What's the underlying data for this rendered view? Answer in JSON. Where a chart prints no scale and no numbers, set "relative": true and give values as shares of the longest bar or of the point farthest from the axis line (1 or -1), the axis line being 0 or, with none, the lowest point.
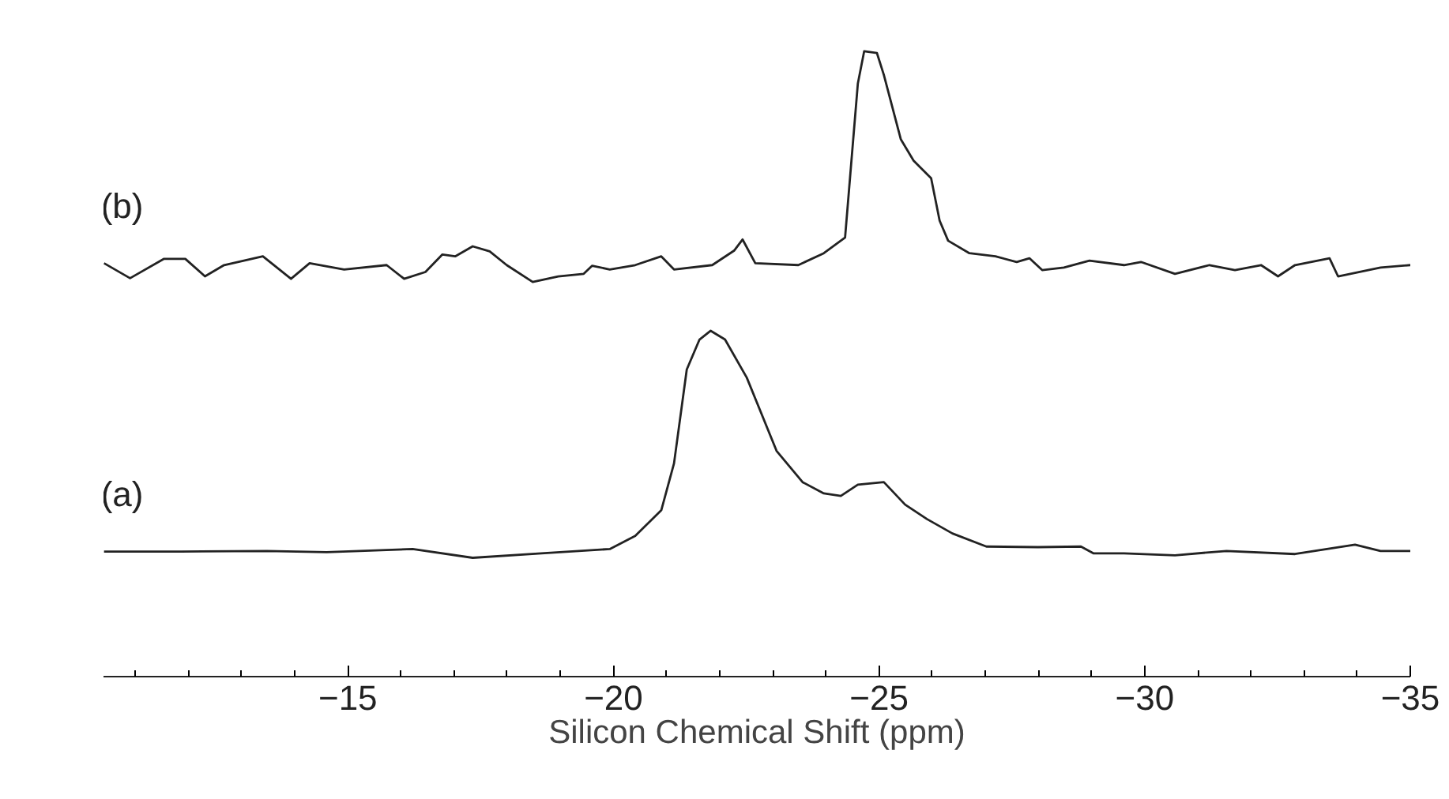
{
  "chart_data": {
    "type": "line",
    "relative": true,
    "xlabel": "Silicon Chemical Shift (ppm)",
    "tick_labels": "x",
    "grid": false,
    "marker": "none",
    "line_style": "solid",
    "xlim": [
      -10.4,
      -35
    ],
    "xticks": [
      {
        "value": -11,
        "label": null
      },
      {
        "value": -12,
        "label": null
      },
      {
        "value": -13,
        "label": null
      },
      {
        "value": -14,
        "label": null
      },
      -15,
      {
        "value": -16,
        "label": null
      },
      {
        "value": -17,
        "label": null
      },
      {
        "value": -18,
        "label": null
      },
      {
        "value": -19,
        "label": null
      },
      -20,
      {
        "value": -21,
        "label": null
      },
      {
        "value": -22,
        "label": null
      },
      {
        "value": -23,
        "label": null
      },
      {
        "value": -24,
        "label": null
      },
      -25,
      {
        "value": -26,
        "label": null
      },
      {
        "value": -27,
        "label": null
      },
      {
        "value": -28,
        "label": null
      },
      {
        "value": -29,
        "label": null
      },
      -30,
      {
        "value": -31,
        "label": null
      },
      {
        "value": -32,
        "label": null
      },
      {
        "value": -33,
        "label": null
      },
      {
        "value": -34,
        "label": null
      },
      -35
    ],
    "series": [
      {
        "name": "(b)",
        "color": "#222222",
        "x": [
          -10.41,
          -10.9,
          -11.54,
          -11.94,
          -12.31,
          -12.67,
          -13.4,
          -13.93,
          -14.28,
          -14.93,
          -15.73,
          -16.06,
          -16.46,
          -16.78,
          -17.02,
          -17.35,
          -17.67,
          -17.99,
          -18.48,
          -18.96,
          -19.44,
          -19.6,
          -19.93,
          -20.41,
          -20.9,
          -21.14,
          -21.86,
          -22.27,
          -22.43,
          -22.67,
          -23.48,
          -23.96,
          -24.36,
          -24.44,
          -24.6,
          -24.72,
          -24.96,
          -25.09,
          -25.41,
          -25.65,
          -25.98,
          -26.14,
          -26.3,
          -26.7,
          -27.19,
          -27.59,
          -27.83,
          -28.07,
          -28.48,
          -28.96,
          -29.61,
          -29.93,
          -30.57,
          -31.22,
          -31.7,
          -32.19,
          -32.51,
          -32.83,
          -33.48,
          -33.64,
          -34.44,
          -35.0
        ],
        "values": [
          0.661,
          0.637,
          0.668,
          0.668,
          0.64,
          0.658,
          0.672,
          0.636,
          0.661,
          0.651,
          0.658,
          0.636,
          0.647,
          0.675,
          0.672,
          0.688,
          0.68,
          0.658,
          0.631,
          0.64,
          0.644,
          0.657,
          0.651,
          0.658,
          0.672,
          0.651,
          0.658,
          0.681,
          0.699,
          0.661,
          0.658,
          0.677,
          0.702,
          0.784,
          0.948,
          1.0,
          0.997,
          0.962,
          0.859,
          0.825,
          0.797,
          0.729,
          0.697,
          0.677,
          0.672,
          0.663,
          0.669,
          0.65,
          0.654,
          0.665,
          0.658,
          0.663,
          0.644,
          0.658,
          0.65,
          0.658,
          0.64,
          0.658,
          0.669,
          0.64,
          0.654,
          0.658
        ]
      },
      {
        "name": "(a)",
        "color": "#222222",
        "x": [
          -10.41,
          -11.86,
          -13.48,
          -14.6,
          -16.22,
          -17.35,
          -18.64,
          -19.93,
          -20.41,
          -20.9,
          -21.14,
          -21.38,
          -21.62,
          -21.83,
          -22.1,
          -22.51,
          -23.07,
          -23.56,
          -23.96,
          -24.28,
          -24.6,
          -25.09,
          -25.49,
          -25.9,
          -26.38,
          -27.02,
          -27.99,
          -28.8,
          -29.04,
          -29.61,
          -30.57,
          -31.54,
          -32.83,
          -33.96,
          -34.44,
          -35.0
        ],
        "values": [
          0.2,
          0.2,
          0.201,
          0.199,
          0.204,
          0.19,
          0.197,
          0.204,
          0.225,
          0.266,
          0.341,
          0.491,
          0.539,
          0.553,
          0.539,
          0.478,
          0.361,
          0.311,
          0.293,
          0.289,
          0.307,
          0.311,
          0.275,
          0.252,
          0.229,
          0.208,
          0.207,
          0.208,
          0.197,
          0.197,
          0.194,
          0.201,
          0.196,
          0.211,
          0.201,
          0.201
        ]
      }
    ]
  }
}
